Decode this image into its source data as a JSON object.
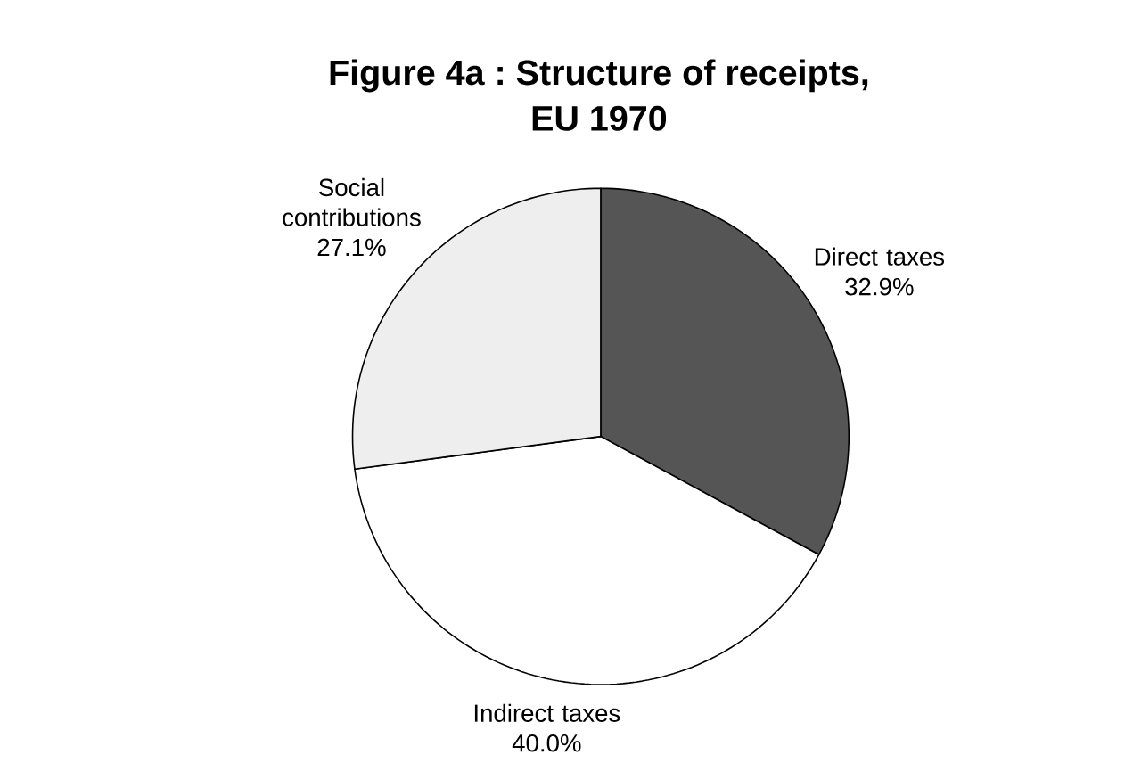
{
  "chart_data": {
    "type": "pie",
    "title": "Figure 4a : Structure of receipts, EU 1970",
    "categories": [
      "Direct taxes",
      "Indirect taxes",
      "Social contributions"
    ],
    "values": [
      32.9,
      40.0,
      27.1
    ],
    "value_labels": [
      "32.9%",
      "40.0%",
      "27.1%"
    ],
    "colors": [
      "#555555",
      "#ffffff",
      "#eeeeee"
    ]
  }
}
